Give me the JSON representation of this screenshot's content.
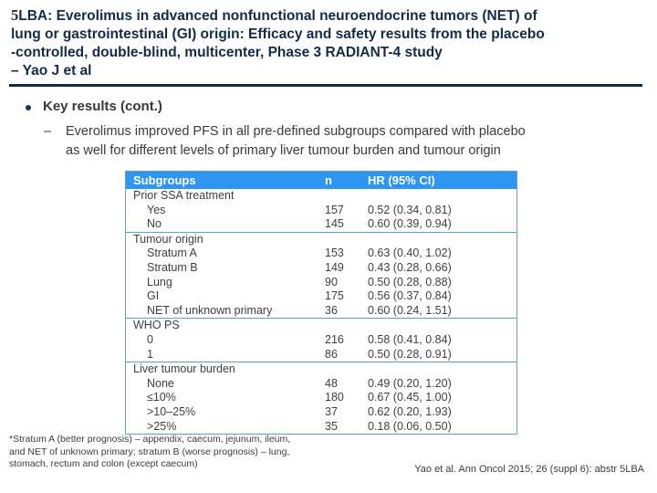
{
  "title": {
    "lead_char": "5",
    "line1": "LBA: Everolimus in advanced nonfunctional neuroendocrine tumors (NET) of",
    "line2": "lung or gastrointestinal (GI) origin: Efficacy and safety results from the placebo",
    "line3": "-controlled, double-blind, multicenter, Phase 3 RADIANT-4 study",
    "line4": "– Yao J et al"
  },
  "key_results": {
    "heading": "Key results (cont.)",
    "dash": "–",
    "lines": [
      "Everolimus improved PFS in all pre-defined subgroups compared with placebo",
      "as well for different levels of primary liver tumour burden and tumour origin"
    ]
  },
  "table": {
    "headers": [
      "Subgroups",
      "n",
      "HR (95% CI)"
    ],
    "sections": [
      {
        "label": "Prior SSA treatment",
        "rows": [
          {
            "name": "Yes",
            "n": "157",
            "hr": "0.52 (0.34, 0.81)"
          },
          {
            "name": "No",
            "n": "145",
            "hr": "0.60 (0.39, 0.94)"
          }
        ]
      },
      {
        "label": "Tumour origin",
        "rows": [
          {
            "name": "Stratum A",
            "n": "153",
            "hr": "0.63 (0.40, 1.02)"
          },
          {
            "name": "Stratum B",
            "n": "149",
            "hr": "0.43 (0.28, 0.66)"
          },
          {
            "name": "Lung",
            "n": "90",
            "hr": "0.50 (0.28, 0.88)"
          },
          {
            "name": "GI",
            "n": "175",
            "hr": "0.56 (0.37, 0.84)"
          },
          {
            "name": "NET of unknown primary",
            "n": "36",
            "hr": "0.60 (0.24, 1.51)"
          }
        ]
      },
      {
        "label": "WHO PS",
        "rows": [
          {
            "name": "0",
            "n": "216",
            "hr": "0.58 (0.41, 0.84)"
          },
          {
            "name": "1",
            "n": "86",
            "hr": "0.50 (0.28, 0.91)"
          }
        ]
      },
      {
        "label": "Liver tumour burden",
        "rows": [
          {
            "name": "None",
            "n": "48",
            "hr": "0.49 (0.20, 1.20)"
          },
          {
            "name": "≤10%",
            "n": "180",
            "hr": "0.67 (0.45, 1.00)"
          },
          {
            "name": ">10–25%",
            "n": "37",
            "hr": "0.62 (0.20, 1.93)"
          },
          {
            "name": ">25%",
            "n": "35",
            "hr": "0.18 (0.06, 0.50)"
          }
        ]
      }
    ]
  },
  "footnote": {
    "lines": [
      "*Stratum A (better prognosis) – appendix, caecum, jejunum, ileum,",
      "and NET of unknown primary; stratum B (worse prognosis) – lung,",
      "stomach, rectum and colon (except caecum)"
    ]
  },
  "citation": "Yao et al. Ann Oncol 2015; 26 (suppl 6): abstr 5LBA",
  "colors": {
    "title_text": "#132C46",
    "title_rule": "#0E2A47",
    "table_header_bg": "#2E95F0",
    "table_header_text": "#FFFFFF",
    "table_border": "#5BA3C9",
    "body_text": "#3F3F3F"
  }
}
